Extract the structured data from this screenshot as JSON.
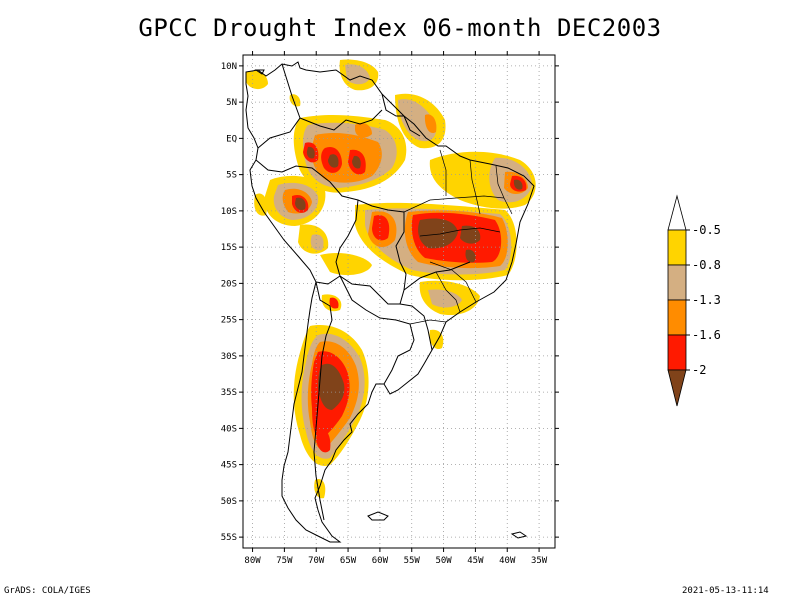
{
  "title": "GPCC Drought Index 06-month DEC2003",
  "footer": {
    "left": "GrADS: COLA/IGES",
    "right": "2021-05-13-11:14"
  },
  "map": {
    "region": "South America",
    "lon_range": [
      -81.5,
      -32.5
    ],
    "lat_range": [
      -56.5,
      11.5
    ],
    "lon_ticks": [
      "80W",
      "75W",
      "70W",
      "65W",
      "60W",
      "55W",
      "50W",
      "45W",
      "40W",
      "35W"
    ],
    "lat_ticks": [
      "10N",
      "5N",
      "EQ",
      "5S",
      "10S",
      "15S",
      "20S",
      "25S",
      "30S",
      "35S",
      "40S",
      "45S",
      "50S",
      "55S"
    ],
    "grid": "dotted"
  },
  "legend": {
    "labels": [
      "-0.5",
      "-0.8",
      "-1.3",
      "-1.6",
      "-2"
    ],
    "colors": {
      "lt_neg_05": "#FFD400",
      "lt_neg_08": "#D4AF82",
      "lt_neg_13": "#FF8C00",
      "lt_neg_16": "#FF1A00",
      "lt_neg_20": "#80431A",
      "above": "#FFFFFF"
    }
  }
}
